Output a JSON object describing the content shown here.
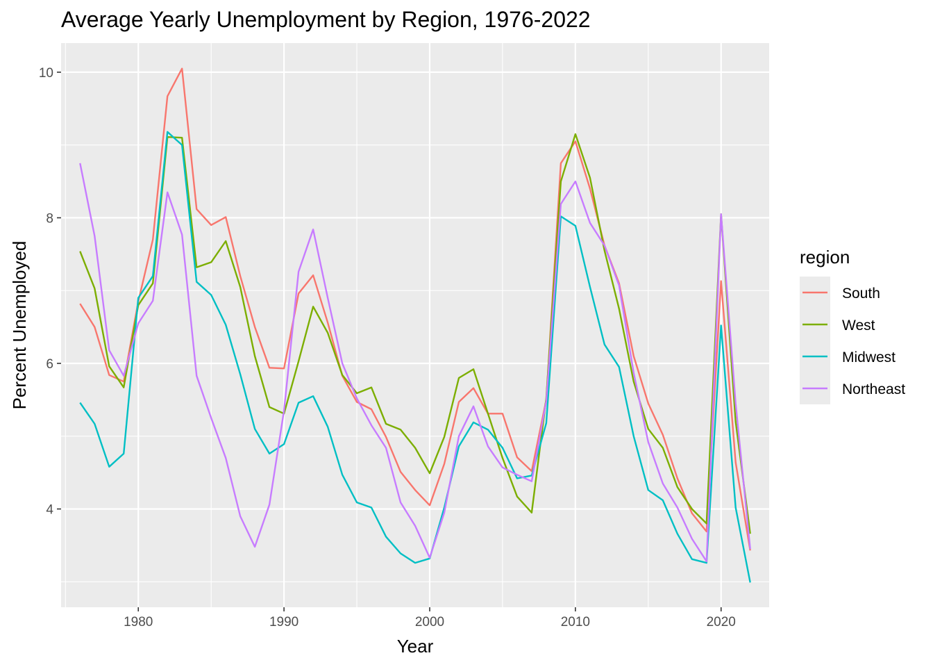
{
  "chart_data": {
    "type": "line",
    "title": "Average Yearly Unemployment by Region, 1976-2022",
    "xlabel": "Year",
    "ylabel": "Percent Unemployed",
    "xlim": [
      1974.7,
      1979.3
    ],
    "ylim": [
      2.65,
      10.4
    ],
    "x_ticks": [
      1980,
      1990,
      2000,
      2010,
      2020
    ],
    "y_ticks": [
      4,
      6,
      8,
      10
    ],
    "grid": true,
    "legend": {
      "title": "region",
      "position": "right"
    },
    "x": [
      1976,
      1977,
      1978,
      1979,
      1980,
      1981,
      1982,
      1983,
      1984,
      1985,
      1986,
      1987,
      1988,
      1989,
      1990,
      1991,
      1992,
      1993,
      1994,
      1995,
      1996,
      1997,
      1998,
      1999,
      2000,
      2001,
      2002,
      2003,
      2004,
      2005,
      2006,
      2007,
      2008,
      2009,
      2010,
      2011,
      2012,
      2013,
      2014,
      2015,
      2016,
      2017,
      2018,
      2019,
      2020,
      2021,
      2022
    ],
    "series": [
      {
        "name": "South",
        "color": "#F8766D",
        "values": [
          6.82,
          6.5,
          5.84,
          5.75,
          6.85,
          7.7,
          9.67,
          10.05,
          8.12,
          7.9,
          8.01,
          7.2,
          6.5,
          5.94,
          5.93,
          6.96,
          7.21,
          6.56,
          5.83,
          5.47,
          5.37,
          4.99,
          4.51,
          4.26,
          4.05,
          4.62,
          5.47,
          5.66,
          5.31,
          5.31,
          4.71,
          4.52,
          5.5,
          8.75,
          9.05,
          8.4,
          7.62,
          7.1,
          6.1,
          5.45,
          5.02,
          4.42,
          3.94,
          3.69,
          7.13,
          4.64,
          3.43
        ]
      },
      {
        "name": "West",
        "color": "#7CAE00",
        "values": [
          7.54,
          7.03,
          5.96,
          5.67,
          6.8,
          7.1,
          9.11,
          9.1,
          7.32,
          7.39,
          7.68,
          7.05,
          6.1,
          5.4,
          5.31,
          6.03,
          6.78,
          6.42,
          5.84,
          5.59,
          5.67,
          5.17,
          5.09,
          4.84,
          4.49,
          4.99,
          5.8,
          5.92,
          5.31,
          4.7,
          4.17,
          3.95,
          5.52,
          8.5,
          9.15,
          8.55,
          7.55,
          6.75,
          5.75,
          5.1,
          4.84,
          4.3,
          4.0,
          3.8,
          8.05,
          5.2,
          3.66
        ]
      },
      {
        "name": "Midwest",
        "color": "#00BFC4",
        "values": [
          5.46,
          5.17,
          4.58,
          4.76,
          6.9,
          7.2,
          9.18,
          9.0,
          7.12,
          6.94,
          6.53,
          5.85,
          5.1,
          4.76,
          4.89,
          5.46,
          5.55,
          5.13,
          4.47,
          4.09,
          4.02,
          3.62,
          3.39,
          3.26,
          3.32,
          4.02,
          4.86,
          5.19,
          5.09,
          4.84,
          4.42,
          4.46,
          5.18,
          8.02,
          7.89,
          7.05,
          6.26,
          5.95,
          5.0,
          4.26,
          4.12,
          3.66,
          3.31,
          3.26,
          6.52,
          4.02,
          2.99
        ]
      },
      {
        "name": "Northeast",
        "color": "#C77CFF",
        "values": [
          8.75,
          7.75,
          6.18,
          5.83,
          6.55,
          6.86,
          8.35,
          7.77,
          5.83,
          5.25,
          4.7,
          3.9,
          3.48,
          4.06,
          5.35,
          7.26,
          7.84,
          6.9,
          6.0,
          5.52,
          5.15,
          4.84,
          4.09,
          3.77,
          3.33,
          3.95,
          5.0,
          5.41,
          4.86,
          4.57,
          4.47,
          4.38,
          5.48,
          8.19,
          8.5,
          7.93,
          7.62,
          7.07,
          5.87,
          4.92,
          4.35,
          4.02,
          3.59,
          3.28,
          8.05,
          5.45,
          3.45
        ]
      }
    ]
  }
}
